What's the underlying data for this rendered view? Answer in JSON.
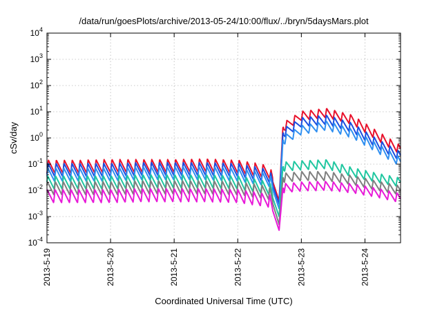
{
  "chart_data": {
    "type": "line",
    "title": "/data/run/goesPlots/archive/2013-05-24/10:00/flux/../bryn/5daysMars.plot",
    "xlabel": "Coordinated Universal Time (UTC)",
    "ylabel": "cSv/day",
    "yscale": "log",
    "ylim": [
      0.0001,
      10000
    ],
    "xlim": [
      0,
      5.56
    ],
    "x_tick_values": [
      0,
      1,
      2,
      3,
      4,
      5
    ],
    "x_tick_labels": [
      "2013-5-19",
      "2013-5-20",
      "2013-5-21",
      "2013-5-22",
      "2013-5-23",
      "2013-5-24"
    ],
    "y_tick_exponents": [
      -4,
      -3,
      -2,
      -1,
      0,
      1,
      2,
      3,
      4
    ],
    "y_tick_base": "10",
    "grid": true,
    "legend": "none",
    "series": [
      {
        "color": "#e8102a",
        "x": [
          0,
          0.5,
          1,
          1.5,
          2,
          2.5,
          3,
          3.5,
          3.65,
          3.71,
          4,
          4.4,
          4.8,
          5.2,
          5.56
        ],
        "y": [
          0.08,
          0.08,
          0.085,
          0.085,
          0.085,
          0.09,
          0.08,
          0.05,
          0.004,
          2.5,
          7,
          9,
          5,
          1.2,
          0.35
        ]
      },
      {
        "color": "#1a4de0",
        "x": [
          0,
          0.5,
          1,
          1.5,
          2,
          2.5,
          3,
          3.5,
          3.65,
          3.71,
          4,
          4.4,
          4.8,
          5.2,
          5.56
        ],
        "y": [
          0.06,
          0.06,
          0.06,
          0.065,
          0.065,
          0.065,
          0.06,
          0.035,
          0.003,
          1.5,
          4,
          5,
          2.5,
          0.6,
          0.2
        ]
      },
      {
        "color": "#2f8ff0",
        "x": [
          0,
          0.5,
          1,
          1.5,
          2,
          2.5,
          3,
          3.5,
          3.65,
          3.71,
          4,
          4.4,
          4.8,
          5.2,
          5.56
        ],
        "y": [
          0.04,
          0.04,
          0.04,
          0.045,
          0.045,
          0.045,
          0.04,
          0.025,
          0.002,
          0.8,
          2,
          3,
          1.5,
          0.4,
          0.12
        ]
      },
      {
        "color": "#1fc7a0",
        "x": [
          0,
          0.5,
          1,
          1.5,
          2,
          2.5,
          3,
          3.5,
          3.65,
          3.71,
          4,
          4.4,
          4.8,
          5.2,
          5.56
        ],
        "y": [
          0.02,
          0.02,
          0.02,
          0.022,
          0.022,
          0.022,
          0.02,
          0.012,
          0.001,
          0.08,
          0.09,
          0.1,
          0.05,
          0.03,
          0.02
        ]
      },
      {
        "color": "#7f7f7f",
        "x": [
          0,
          0.5,
          1,
          1.5,
          2,
          2.5,
          3,
          3.5,
          3.65,
          3.71,
          4,
          4.4,
          4.8,
          5.2,
          5.56
        ],
        "y": [
          0.012,
          0.012,
          0.012,
          0.013,
          0.013,
          0.013,
          0.012,
          0.008,
          0.0005,
          0.03,
          0.035,
          0.035,
          0.025,
          0.015,
          0.01
        ]
      },
      {
        "color": "#e81ad8",
        "x": [
          0,
          0.5,
          1,
          1.5,
          2,
          2.5,
          3,
          3.5,
          3.65,
          3.71,
          4,
          4.4,
          4.8,
          5.2,
          5.56
        ],
        "y": [
          0.006,
          0.006,
          0.006,
          0.0065,
          0.0065,
          0.0065,
          0.006,
          0.004,
          0.0003,
          0.012,
          0.014,
          0.015,
          0.012,
          0.008,
          0.005
        ]
      }
    ]
  }
}
